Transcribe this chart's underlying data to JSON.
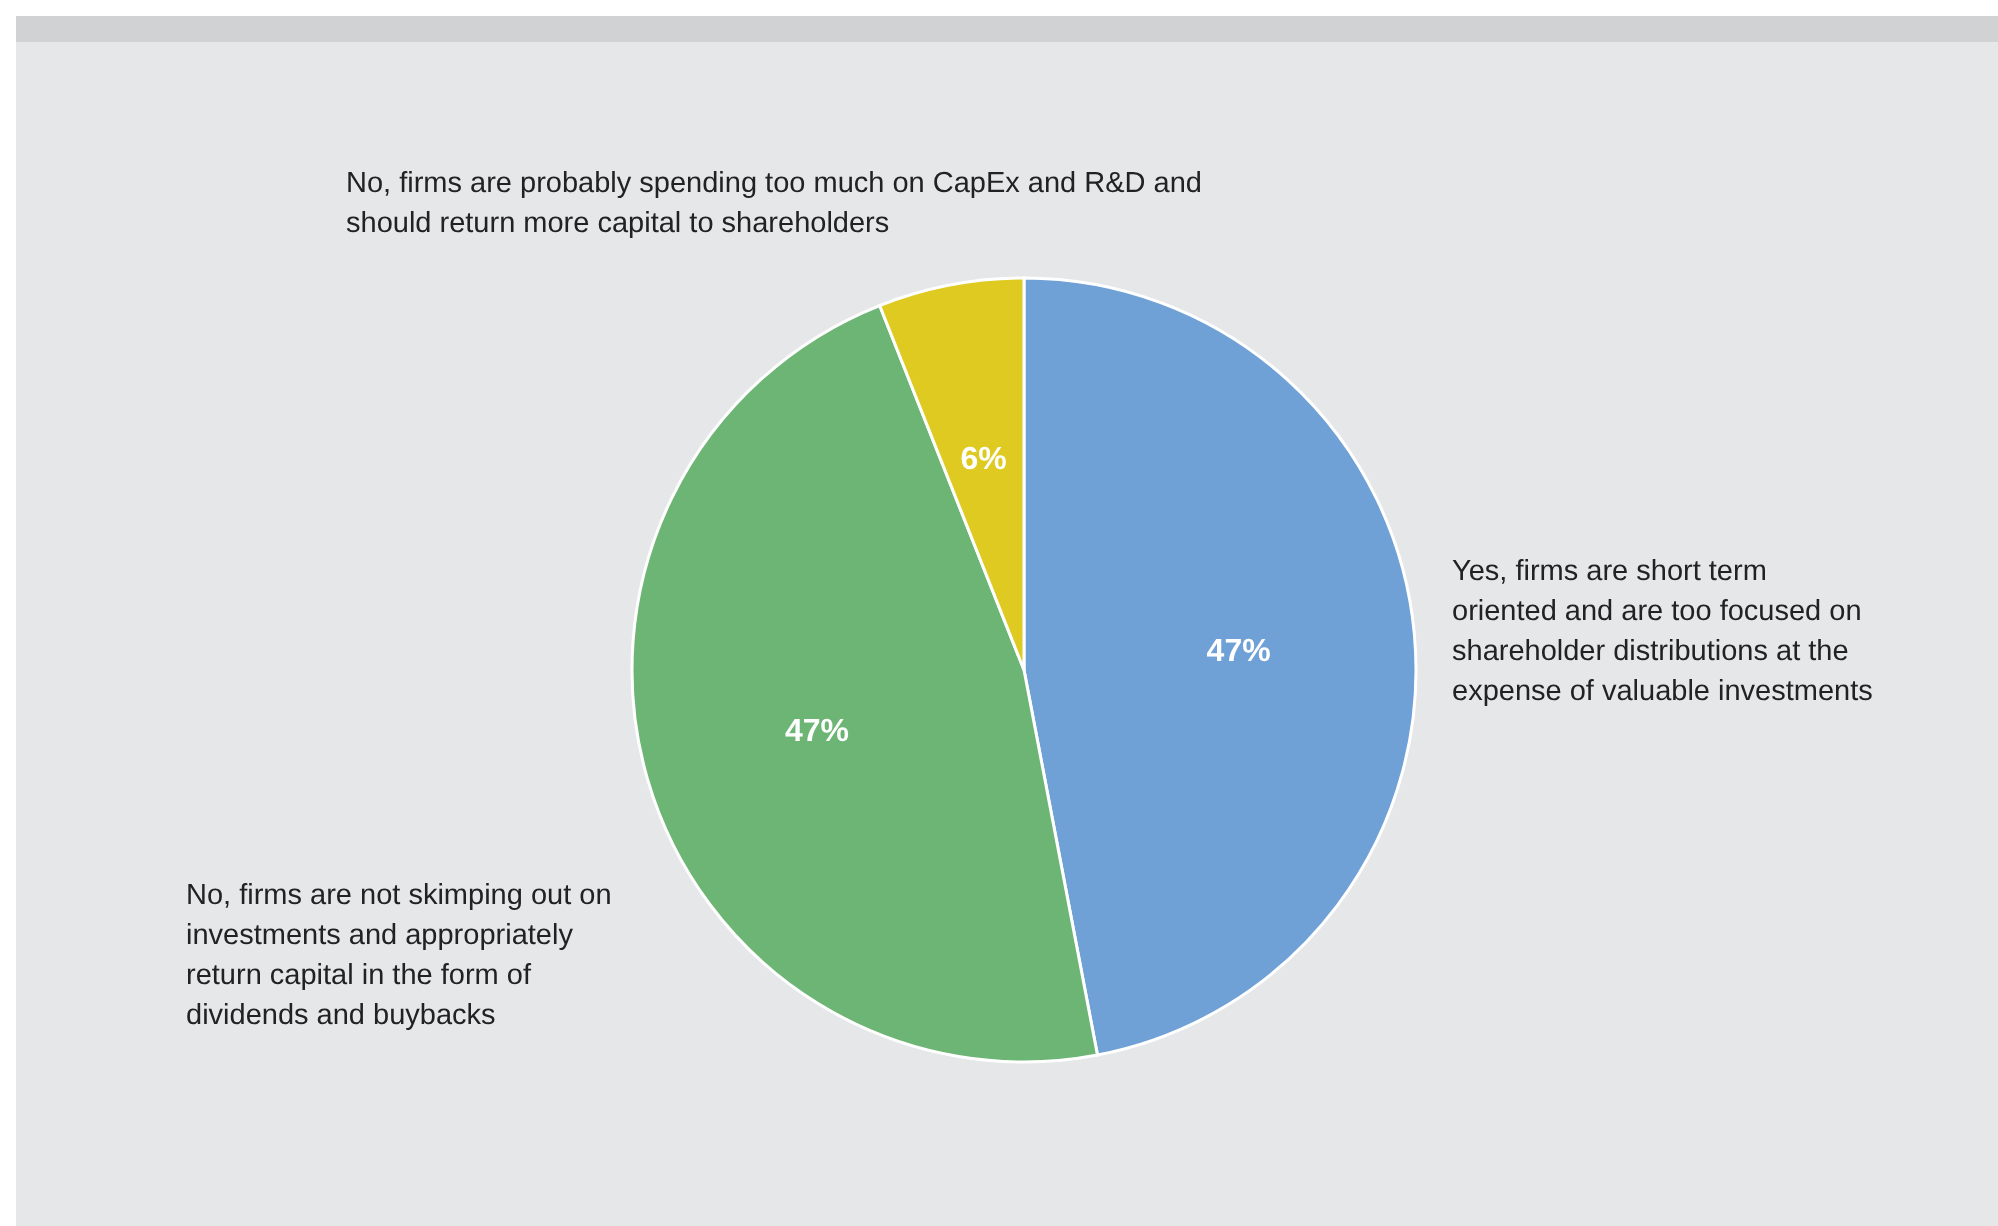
{
  "chart_data": {
    "type": "pie",
    "categories": [
      "Yes, firms are short term oriented and are too focused on shareholder distributions at the expense of valuable investments",
      "No, firms are not skimping out on investments and appropriately return capital in the form of dividends and buybacks",
      "No, firms are probably spending too much on CapEx and R&D and should return more capital to shareholders"
    ],
    "values": [
      47,
      47,
      6
    ],
    "colors": [
      "#6fa0d6",
      "#6db574",
      "#dfca22"
    ],
    "value_labels": [
      "47%",
      "47%",
      "6%"
    ],
    "legend": false
  }
}
